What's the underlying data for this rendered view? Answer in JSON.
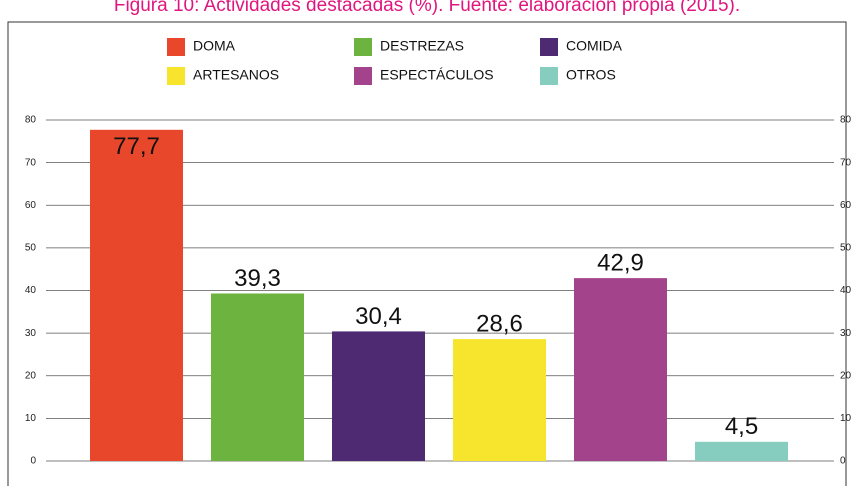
{
  "chart_data": {
    "type": "bar",
    "title": "Figura 10: Actividades destacadas (%). Fuente: elaboración propia (2015).",
    "categories": [
      "DOMA",
      "DESTREZAS",
      "COMIDA",
      "ARTESANOS",
      "ESPECTÁCULOS",
      "OTROS"
    ],
    "values": [
      77.7,
      39.3,
      30.4,
      28.6,
      42.9,
      4.5
    ],
    "value_labels": [
      "77,7",
      "39,3",
      "30,4",
      "28,6",
      "42,9",
      "4,5"
    ],
    "colors": [
      "#e8472c",
      "#6db33f",
      "#4e2a73",
      "#f7e52d",
      "#a2438c",
      "#86cdc0"
    ],
    "ylim": [
      0,
      80
    ],
    "yticks": [
      0,
      10,
      20,
      30,
      40,
      50,
      60,
      70,
      80
    ],
    "grid": true
  }
}
